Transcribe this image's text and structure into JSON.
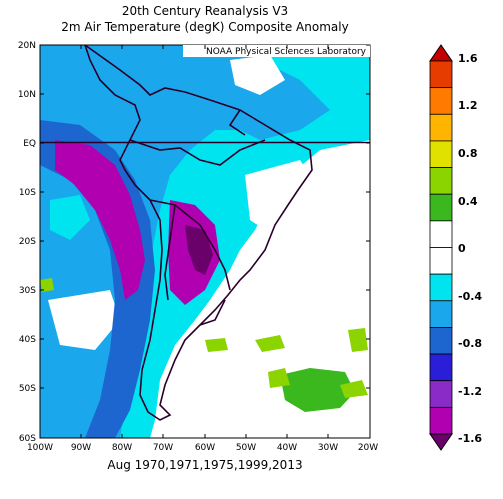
{
  "title_line1": "20th Century Reanalysis V3",
  "title_line2": "2m Air Temperature (degK) Composite Anomaly",
  "credit": "NOAA Physical Sciences Laboratory",
  "footer": "Aug 1970,1971,1975,1999,2013",
  "lat_labels": [
    "20N",
    "10N",
    "EQ",
    "10S",
    "20S",
    "30S",
    "40S",
    "50S",
    "60S"
  ],
  "lon_labels": [
    "100W",
    "90W",
    "80W",
    "70W",
    "60W",
    "50W",
    "40W",
    "30W",
    "20W"
  ],
  "colorbar": {
    "labels": [
      "1.6",
      "1.2",
      "0.8",
      "0.4",
      "0",
      "-0.4",
      "-0.8",
      "-1.2",
      "-1.6"
    ],
    "colors": [
      "#c40000",
      "#e63c00",
      "#ff7a00",
      "#ffb400",
      "#e1e100",
      "#8cd400",
      "#3ab81e",
      "#ffffff",
      "#ffffff",
      "#00e4f0",
      "#1aa7ec",
      "#1d66d0",
      "#2b1ed8",
      "#8a2bc8",
      "#b000b0",
      "#6a006a"
    ]
  }
}
